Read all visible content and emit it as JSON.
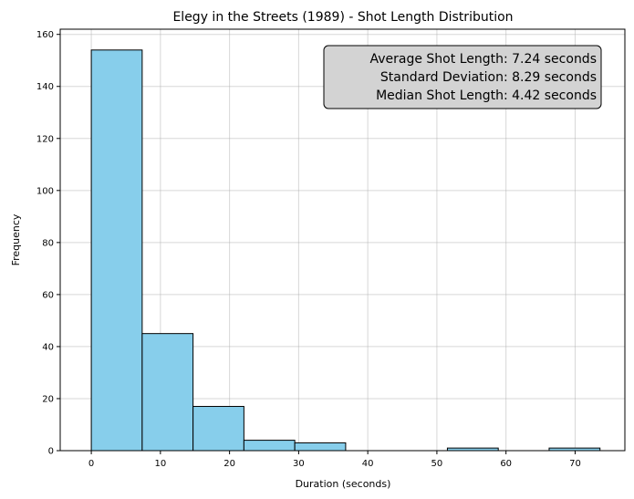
{
  "chart_data": {
    "type": "bar",
    "title": "Elegy in the Streets (1989) - Shot Length Distribution",
    "xlabel": "Duration (seconds)",
    "ylabel": "Frequency",
    "xlim": [
      -4.5,
      77.2
    ],
    "ylim": [
      0,
      162
    ],
    "xticks": [
      0,
      10,
      20,
      30,
      40,
      50,
      60,
      70
    ],
    "yticks": [
      0,
      20,
      40,
      60,
      80,
      100,
      120,
      140,
      160
    ],
    "grid": true,
    "bar_color": "#87ceeb",
    "edge_color": "#000000",
    "bins": [
      {
        "start": 0.0,
        "end": 7.36,
        "count": 154
      },
      {
        "start": 7.36,
        "end": 14.72,
        "count": 45
      },
      {
        "start": 14.72,
        "end": 22.08,
        "count": 17
      },
      {
        "start": 22.08,
        "end": 29.44,
        "count": 4
      },
      {
        "start": 29.44,
        "end": 36.8,
        "count": 3
      },
      {
        "start": 36.8,
        "end": 44.16,
        "count": 0
      },
      {
        "start": 44.16,
        "end": 51.52,
        "count": 0
      },
      {
        "start": 51.52,
        "end": 58.88,
        "count": 1
      },
      {
        "start": 58.88,
        "end": 66.24,
        "count": 0
      },
      {
        "start": 66.24,
        "end": 73.6,
        "count": 1
      }
    ],
    "annotation": {
      "lines": [
        "Average Shot Length: 7.24 seconds",
        "Standard Deviation: 8.29 seconds",
        "Median Shot Length: 4.42 seconds"
      ],
      "position": "top-right",
      "background": "#d3d3d3"
    }
  }
}
